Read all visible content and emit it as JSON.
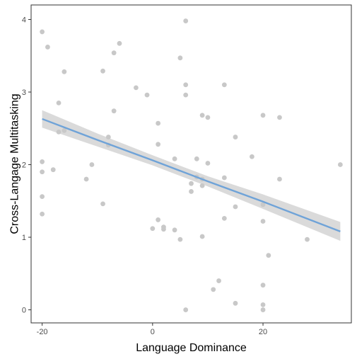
{
  "chart_data": {
    "type": "scatter",
    "xlabel": "Language Dominance",
    "ylabel": "Cross-Langage Multitasking",
    "xlim": [
      -22,
      36
    ],
    "ylim": [
      -0.18,
      4.2
    ],
    "x_ticks": [
      -20,
      0,
      20
    ],
    "y_ticks": [
      0,
      1,
      2,
      3,
      4
    ],
    "x_tick_labels": [
      "-20",
      "0",
      "20"
    ],
    "y_tick_labels": [
      "0",
      "1",
      "2",
      "3",
      "4"
    ],
    "grid": false,
    "points_color": "#c8c8c8",
    "fit_color": "#6fa3d8",
    "band_color": "#d3d3d3",
    "points": [
      {
        "x": -20,
        "y": 3.83
      },
      {
        "x": -19,
        "y": 3.62
      },
      {
        "x": -16,
        "y": 3.28
      },
      {
        "x": -17,
        "y": 2.85
      },
      {
        "x": -17,
        "y": 2.45
      },
      {
        "x": -16,
        "y": 2.47
      },
      {
        "x": -20,
        "y": 2.04
      },
      {
        "x": -20,
        "y": 1.9
      },
      {
        "x": -18,
        "y": 1.93
      },
      {
        "x": -20,
        "y": 1.56
      },
      {
        "x": -20,
        "y": 1.32
      },
      {
        "x": -12,
        "y": 1.8
      },
      {
        "x": -11,
        "y": 2.0
      },
      {
        "x": -9,
        "y": 3.29
      },
      {
        "x": -7,
        "y": 3.54
      },
      {
        "x": -6,
        "y": 3.67
      },
      {
        "x": -7,
        "y": 2.74
      },
      {
        "x": -8,
        "y": 2.38
      },
      {
        "x": -8,
        "y": 2.27
      },
      {
        "x": -9,
        "y": 1.46
      },
      {
        "x": -3,
        "y": 3.06
      },
      {
        "x": -1,
        "y": 2.96
      },
      {
        "x": 1,
        "y": 2.57
      },
      {
        "x": 1,
        "y": 2.28
      },
      {
        "x": 0,
        "y": 1.12
      },
      {
        "x": 1,
        "y": 1.24
      },
      {
        "x": 2,
        "y": 1.14
      },
      {
        "x": 2,
        "y": 1.11
      },
      {
        "x": 4,
        "y": 1.1
      },
      {
        "x": 4,
        "y": 2.08
      },
      {
        "x": 5,
        "y": 3.47
      },
      {
        "x": 6,
        "y": 3.98
      },
      {
        "x": 6,
        "y": 3.1
      },
      {
        "x": 6,
        "y": 2.96
      },
      {
        "x": 5,
        "y": 0.97
      },
      {
        "x": 6,
        "y": 0.0
      },
      {
        "x": 7,
        "y": 1.74
      },
      {
        "x": 7,
        "y": 1.63
      },
      {
        "x": 8,
        "y": 2.08
      },
      {
        "x": 8,
        "y": 1.83
      },
      {
        "x": 9,
        "y": 1.8
      },
      {
        "x": 9,
        "y": 1.71
      },
      {
        "x": 9,
        "y": 2.68
      },
      {
        "x": 10,
        "y": 2.65
      },
      {
        "x": 10,
        "y": 2.02
      },
      {
        "x": 9,
        "y": 1.01
      },
      {
        "x": 11,
        "y": 0.28
      },
      {
        "x": 12,
        "y": 0.4
      },
      {
        "x": 13,
        "y": 3.1
      },
      {
        "x": 13,
        "y": 1.82
      },
      {
        "x": 13,
        "y": 1.26
      },
      {
        "x": 15,
        "y": 2.38
      },
      {
        "x": 15,
        "y": 1.42
      },
      {
        "x": 15,
        "y": 0.09
      },
      {
        "x": 18,
        "y": 2.11
      },
      {
        "x": 20,
        "y": 2.68
      },
      {
        "x": 20,
        "y": 1.45
      },
      {
        "x": 20,
        "y": 1.22
      },
      {
        "x": 20,
        "y": 0.34
      },
      {
        "x": 20,
        "y": 0.07
      },
      {
        "x": 20,
        "y": 0.0
      },
      {
        "x": 21,
        "y": 0.75
      },
      {
        "x": 23,
        "y": 2.65
      },
      {
        "x": 23,
        "y": 1.8
      },
      {
        "x": 28,
        "y": 0.97
      },
      {
        "x": 34,
        "y": 2.0
      }
    ],
    "fit": {
      "x": [
        -20,
        -10,
        0,
        10,
        20,
        34
      ],
      "y": [
        2.63,
        2.34,
        2.06,
        1.77,
        1.49,
        1.08
      ],
      "lower": [
        2.51,
        2.25,
        1.99,
        1.7,
        1.39,
        0.95
      ],
      "upper": [
        2.75,
        2.43,
        2.13,
        1.84,
        1.59,
        1.21
      ]
    }
  }
}
